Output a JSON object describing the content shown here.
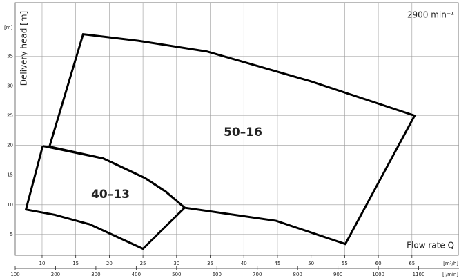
{
  "chart_data": {
    "type": "line",
    "ylabel": "Delivery head [m]",
    "yunit": "[m]",
    "xlabel": "Flow rate Q",
    "xunit": "[m³/h]",
    "x2unit": "[l/min]",
    "annotation": "2900 min⁻¹",
    "xlim": [
      6,
      72
    ],
    "xticks": [
      10,
      15,
      20,
      25,
      30,
      35,
      40,
      45,
      50,
      55,
      60,
      65
    ],
    "x2lim": [
      100,
      1200
    ],
    "x2ticks": [
      100,
      200,
      300,
      400,
      500,
      600,
      700,
      800,
      900,
      1000,
      1100
    ],
    "ylim": [
      1.5,
      44
    ],
    "yticks": [
      5,
      10,
      15,
      20,
      25,
      30,
      35
    ],
    "grid": true,
    "series": [
      {
        "name": "50–16",
        "color": "#000000",
        "x": [
          11.1,
          16.1,
          24.3,
          34.5,
          49.9,
          65.4,
          55.1,
          44.8,
          31.2,
          28.4,
          25.3,
          19.1,
          11.1
        ],
        "values": [
          19.8,
          38.7,
          37.6,
          35.8,
          30.8,
          25.0,
          3.4,
          7.3,
          9.5,
          12.2,
          14.5,
          17.8,
          19.8
        ]
      },
      {
        "name": "40–13",
        "color": "#000000",
        "x": [
          10.1,
          19.1,
          25.3,
          28.4,
          31.2,
          25.0,
          17.1,
          11.9,
          7.6,
          10.1
        ],
        "values": [
          19.9,
          17.8,
          14.5,
          12.2,
          9.5,
          2.6,
          6.7,
          8.3,
          9.2,
          19.9
        ]
      }
    ]
  }
}
